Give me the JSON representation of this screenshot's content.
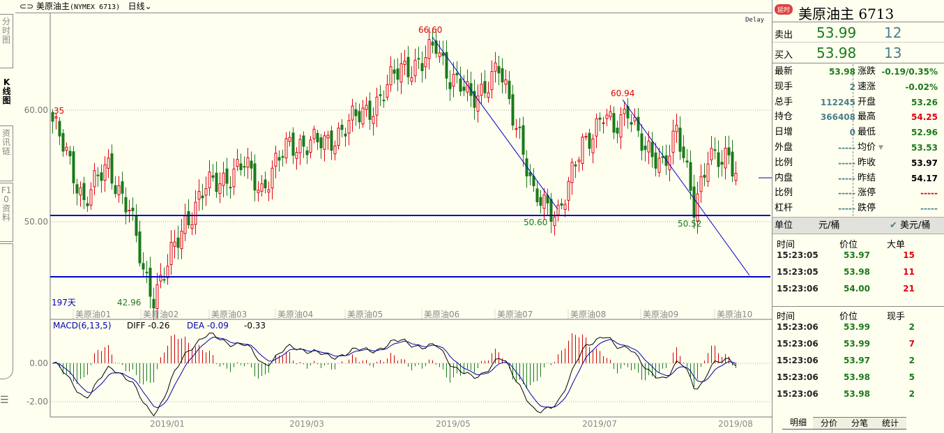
{
  "header": {
    "icon": "link-icon",
    "title": "美原油主",
    "code": "(NYMEX 6713)",
    "period": "日线"
  },
  "sidebar": {
    "tabs": [
      "分时图",
      "K线图",
      "资讯链",
      "F10资料"
    ]
  },
  "chart_data": {
    "type": "candlestick",
    "title": "美原油主 (NYMEX 6713) 日线",
    "delay_label": "Delay",
    "days_label": "197天",
    "y_ticks": [
      "60.00",
      "50.00"
    ],
    "y_range": [
      42,
      69
    ],
    "top_left_label": ".35",
    "contract_labels": [
      "美原油01",
      "美原油02",
      "美原油03",
      "美原油04",
      "美原油05",
      "美原油06",
      "美原油07",
      "美原油08",
      "美原油09",
      "美原油10"
    ],
    "date_labels": [
      "2019/01",
      "2019/03",
      "2019/05",
      "2019/07",
      "2019/08"
    ],
    "annotations": [
      {
        "text": "66.60",
        "type": "high"
      },
      {
        "text": "60.94",
        "type": "high"
      },
      {
        "text": "50.60",
        "type": "low"
      },
      {
        "text": "50.52",
        "type": "low"
      },
      {
        "text": "42.96",
        "type": "low"
      }
    ],
    "price_path": [
      [
        0,
        59
      ],
      [
        9,
        52
      ],
      [
        16,
        55
      ],
      [
        22,
        51
      ],
      [
        26,
        45.5
      ],
      [
        29,
        43.5
      ],
      [
        33,
        46
      ],
      [
        38,
        50
      ],
      [
        44,
        53
      ],
      [
        55,
        55
      ],
      [
        60,
        53
      ],
      [
        68,
        57
      ],
      [
        78,
        57
      ],
      [
        86,
        59
      ],
      [
        94,
        61
      ],
      [
        100,
        64
      ],
      [
        106,
        64
      ],
      [
        110,
        66
      ],
      [
        114,
        63
      ],
      [
        120,
        61
      ],
      [
        128,
        63.5
      ],
      [
        134,
        58
      ],
      [
        138,
        52
      ],
      [
        145,
        51
      ],
      [
        148,
        53
      ],
      [
        152,
        57
      ],
      [
        158,
        59.5
      ],
      [
        161,
        58
      ],
      [
        165,
        60.5
      ],
      [
        170,
        56
      ],
      [
        175,
        55.5
      ],
      [
        179,
        58
      ],
      [
        184,
        51.5
      ],
      [
        188,
        56
      ],
      [
        192,
        55
      ],
      [
        194,
        56
      ],
      [
        197,
        54
      ]
    ],
    "horizontal_lines": [
      50.56,
      45.06
    ],
    "macd": {
      "label": "MACD(6,13,5)",
      "diff_label": "DIFF -0.26",
      "dea_label": "DEA -0.09",
      "macd_value": "-0.33",
      "y_ticks": [
        "0.00",
        "-2.00"
      ]
    }
  },
  "panel": {
    "badge": "延时",
    "title": "美原油主",
    "code": "6713",
    "ask": {
      "label": "卖出",
      "price": "53.99",
      "vol": "12"
    },
    "bid": {
      "label": "买入",
      "price": "53.98",
      "vol": "13"
    },
    "left": [
      [
        "最新",
        "53.98",
        "g"
      ],
      [
        "现手",
        "2",
        "t"
      ],
      [
        "总手",
        "112245",
        "t"
      ],
      [
        "持仓",
        "366408",
        "t"
      ],
      [
        "日增",
        "0",
        "t"
      ],
      [
        "外盘",
        "-----",
        "t"
      ],
      [
        "比例",
        "-----",
        "t"
      ],
      [
        "内盘",
        "-----",
        "t"
      ],
      [
        "比例",
        "-----",
        "t"
      ],
      [
        "杠杆",
        "-----",
        "t"
      ]
    ],
    "right": [
      [
        "涨跌",
        "-0.19/0.35%",
        "g"
      ],
      [
        "速涨",
        "-0.02%",
        "g"
      ],
      [
        "开盘",
        "53.26",
        "g"
      ],
      [
        "最高",
        "54.25",
        "r"
      ],
      [
        "最低",
        "52.96",
        "g"
      ],
      [
        "均价",
        "53.53",
        "g"
      ],
      [
        "昨收",
        "53.97",
        "k"
      ],
      [
        "昨结",
        "54.17",
        "k"
      ],
      [
        "涨停",
        "-----",
        "r"
      ],
      [
        "跌停",
        "-----",
        "t"
      ]
    ],
    "unit": {
      "label": "单位",
      "opt1": "元/桶",
      "opt2": "美元/桶"
    },
    "big": {
      "headers": [
        "时间",
        "价位",
        "大单"
      ],
      "rows": [
        [
          "15:23:05",
          "53.97",
          "15"
        ],
        [
          "15:23:05",
          "53.98",
          "11"
        ],
        [
          "15:23:06",
          "54.00",
          "21"
        ]
      ]
    },
    "ticks": {
      "headers": [
        "时间",
        "价位",
        "现手"
      ],
      "rows": [
        [
          "15:23:06",
          "53.99",
          "2",
          "g"
        ],
        [
          "15:23:06",
          "53.99",
          "7",
          "r"
        ],
        [
          "15:23:06",
          "53.97",
          "2",
          "g"
        ],
        [
          "15:23:06",
          "53.98",
          "5",
          "g"
        ],
        [
          "15:23:06",
          "53.98",
          "2",
          "g"
        ]
      ]
    },
    "tabs": [
      "明细",
      "分价",
      "分笔",
      "统计"
    ]
  }
}
